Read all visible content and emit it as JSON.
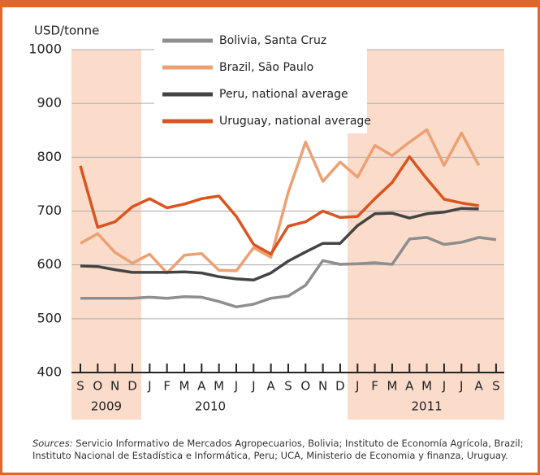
{
  "chart_data": {
    "type": "line",
    "ylabel": "USD/tonne",
    "categories": [
      "S",
      "O",
      "N",
      "D",
      "J",
      "F",
      "M",
      "A",
      "M",
      "J",
      "J",
      "A",
      "S",
      "O",
      "N",
      "D",
      "J",
      "F",
      "M",
      "A",
      "M",
      "J",
      "J",
      "A",
      "S"
    ],
    "year_labels": [
      "2009",
      "2010",
      "2011"
    ],
    "ylim": [
      400,
      1000
    ],
    "yticks": [
      400,
      500,
      600,
      700,
      800,
      900,
      1000
    ],
    "grid": true,
    "series": [
      {
        "name": "Bolivia, Santa Cruz",
        "color": "#8e8e8e",
        "values": [
          538,
          538,
          538,
          538,
          540,
          538,
          541,
          540,
          532,
          522,
          527,
          538,
          542,
          562,
          608,
          601,
          602,
          604,
          601,
          648,
          651,
          638,
          642,
          651,
          647
        ]
      },
      {
        "name": "Brazil, São Paulo",
        "color": "#eda072",
        "values": [
          640,
          658,
          623,
          603,
          620,
          585,
          618,
          621,
          590,
          589,
          632,
          614,
          735,
          828,
          755,
          791,
          763,
          822,
          803,
          828,
          851,
          785,
          845,
          785,
          null
        ]
      },
      {
        "name": "Peru, national average",
        "color": "#444444",
        "values": [
          598,
          597,
          591,
          586,
          586,
          586,
          587,
          585,
          578,
          574,
          572,
          585,
          607,
          624,
          640,
          640,
          673,
          695,
          696,
          687,
          695,
          698,
          705,
          704,
          null
        ]
      },
      {
        "name": "Uruguay, national average",
        "color": "#d9541e",
        "values": [
          784,
          670,
          680,
          708,
          723,
          706,
          713,
          723,
          728,
          690,
          638,
          620,
          672,
          680,
          700,
          688,
          690,
          723,
          753,
          801,
          760,
          722,
          715,
          710,
          null
        ]
      }
    ]
  },
  "footnote": {
    "label": "Sources:",
    "text": "Servicio Informativo de Mercados Agropecuarios, Bolivia; Instituto de Economía Agrícola, Brazil; Instituto Nacional de Estadística e Informática, Peru; UCA, Ministerio de Economia y finanza, Uruguay."
  }
}
